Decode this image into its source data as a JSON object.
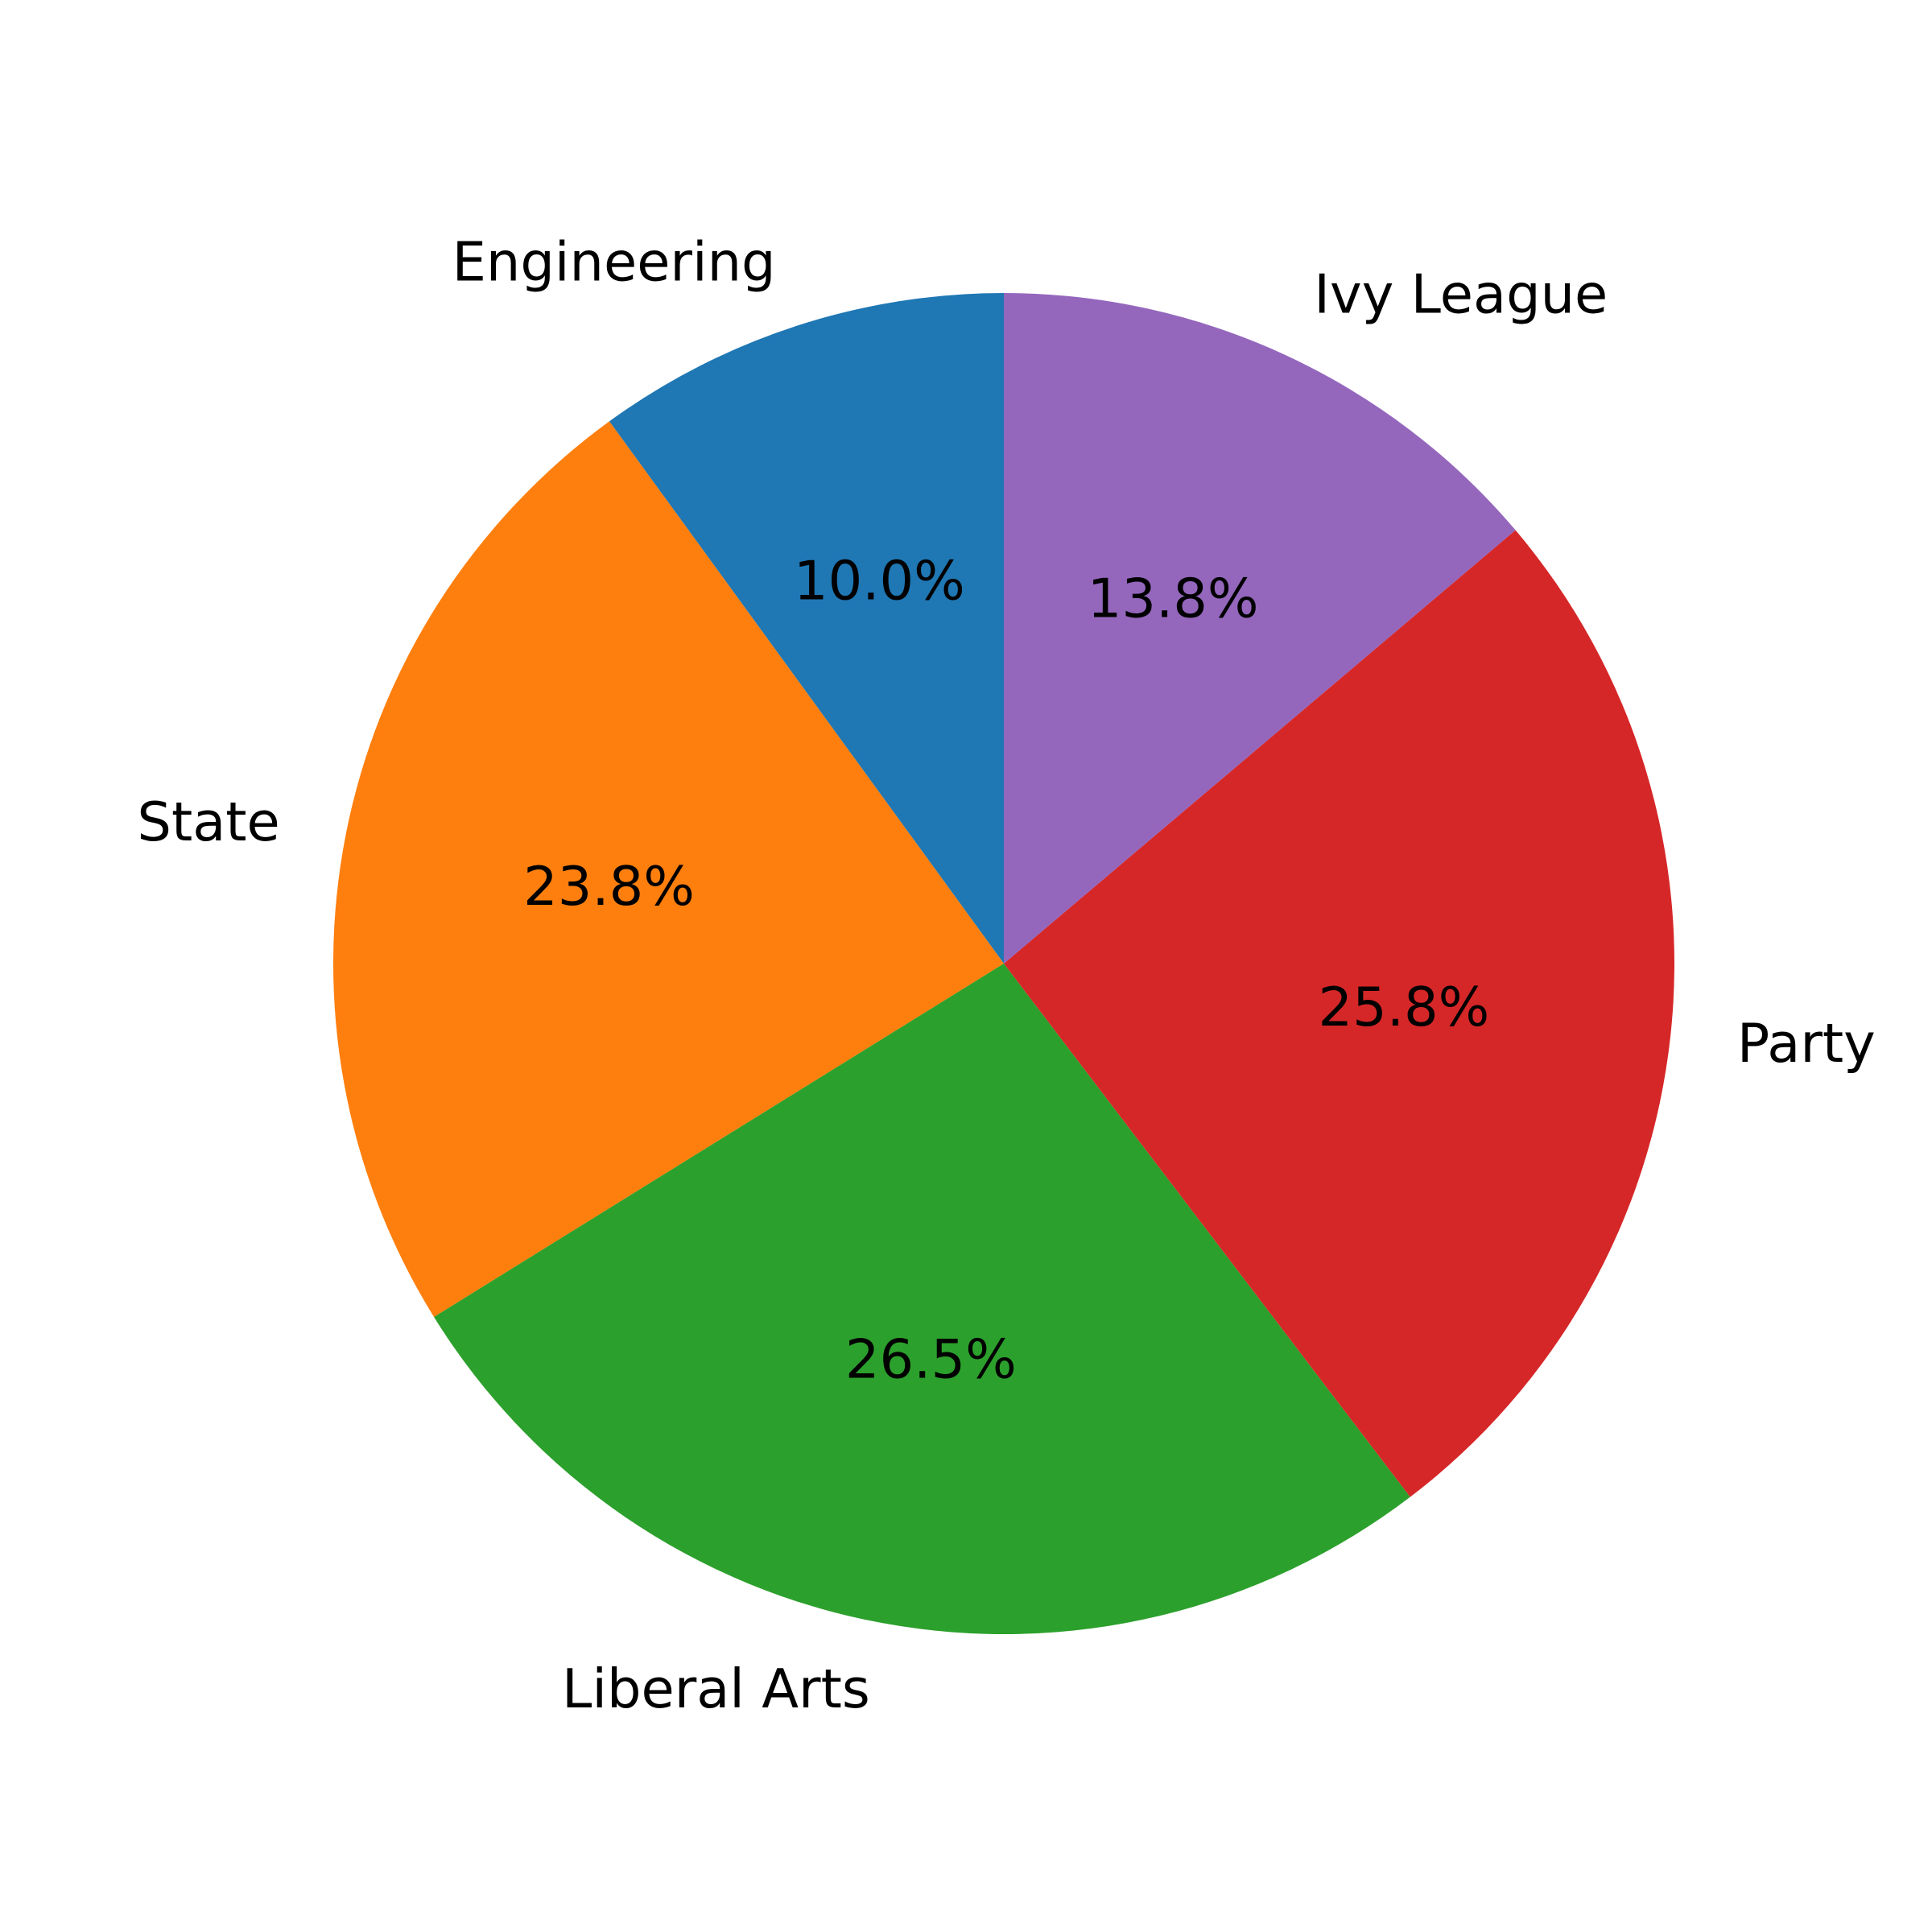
{
  "chart_data": {
    "type": "pie",
    "title": "",
    "categories": [
      "Engineering",
      "State",
      "Liberal Arts",
      "Party",
      "Ivy League"
    ],
    "values": [
      10.0,
      23.8,
      26.5,
      25.8,
      13.8
    ],
    "labels_pct": [
      "10.0%",
      "23.8%",
      "26.5%",
      "25.8%",
      "13.8%"
    ],
    "colors": [
      "#1f77b4",
      "#ff7f0e",
      "#2ca02c",
      "#d62728",
      "#9467bd"
    ],
    "start_angle_deg": 90,
    "direction": "counterclockwise",
    "legend": "none"
  }
}
